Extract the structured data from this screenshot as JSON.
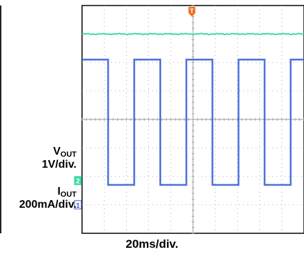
{
  "chart_data": {
    "type": "line",
    "title": "",
    "x_unit_label": "20ms/div.",
    "divisions": {
      "x": 10,
      "y": 8
    },
    "channels": [
      {
        "id": "ch2",
        "marker": "2",
        "name_main": "V",
        "name_sub": "OUT",
        "scale_label": "1V/div.",
        "color": "#3ddba8",
        "waveform": "dc",
        "level_div": 7.0,
        "ground_div": 1.85
      },
      {
        "id": "ch1",
        "marker": "1",
        "name_main": "I",
        "name_sub": "OUT",
        "scale_label": "200mA/div.",
        "color": "#3a5fd8",
        "waveform": "square",
        "high_div": 6.1,
        "low_div": 1.7,
        "ground_div": 1.0,
        "period_div": 2.35,
        "first_rise_div": 0.0,
        "duty": 0.5
      }
    ],
    "trigger": {
      "marker": "T",
      "color": "#f07020",
      "position_div": 4.95
    }
  }
}
